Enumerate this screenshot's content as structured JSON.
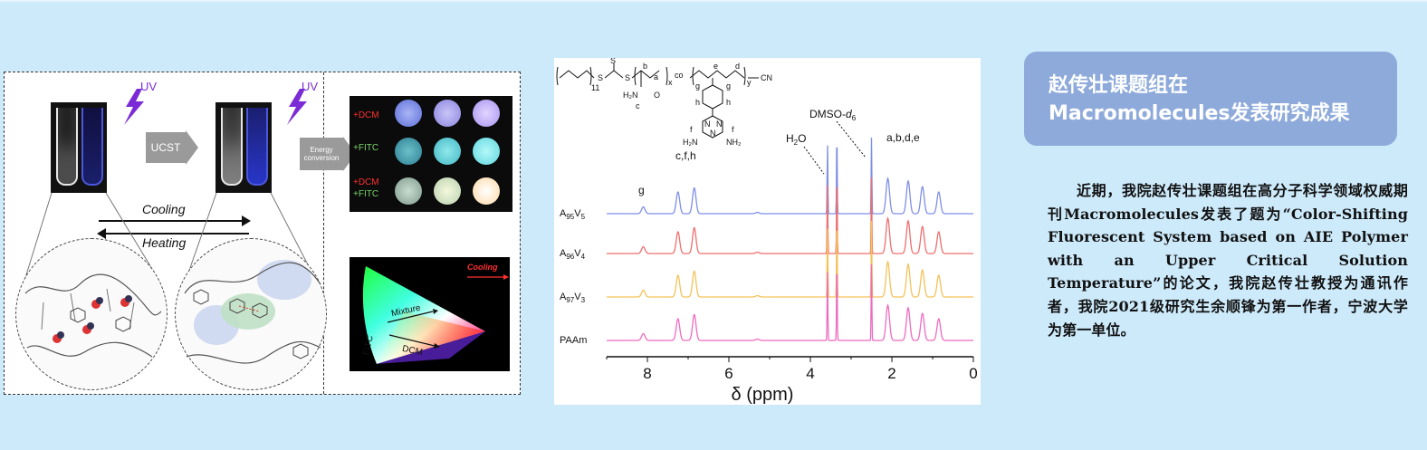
{
  "colors": {
    "background": "#cdeafb",
    "title_box": "#8eaadb",
    "title_text": "#ffffff"
  },
  "title": {
    "line1": "赵传壮课题组在",
    "line2": "Macromolecules发表研究成果"
  },
  "body": {
    "paragraph": "近期，我院赵传壮课题组在高分子科学领域权威期刊Macromolecules发表了题为“Color-Shifting Fluorescent System based on AIE Polymer with an Upper Critical Solution Temperature”的论文，我院赵传壮教授为通讯作者，我院2021级研究生余顺锋为第一作者，宁波大学为第一单位。"
  },
  "scheme": {
    "uv1": "UV",
    "uv2": "UV",
    "ucst": "UCST",
    "energy": "Energy conversion",
    "cooling": "Cooling",
    "heating": "Heating",
    "row1": "+DCM",
    "row2": "+FITC",
    "row3a": "+DCM",
    "row3b": "+FITC",
    "cie_cooling": "Cooling",
    "cie_mixture": "Mixture",
    "cie_fitc": "FITC",
    "cie_dcm": "DCM"
  },
  "chart_data": {
    "type": "line",
    "title": "",
    "xlabel": "δ (ppm)",
    "ylabel": "",
    "xlim": [
      9,
      0
    ],
    "xticks": [
      8,
      6,
      4,
      2,
      0
    ],
    "series": [
      {
        "name": "A95V5",
        "label_main": "A",
        "sub1": "95",
        "label_mid": "V",
        "sub2": "5",
        "color": "#7f8fe6"
      },
      {
        "name": "A96V4",
        "label_main": "A",
        "sub1": "96",
        "label_mid": "V",
        "sub2": "4",
        "color": "#ee6f6f"
      },
      {
        "name": "A97V3",
        "label_main": "A",
        "sub1": "97",
        "label_mid": "V",
        "sub2": "3",
        "color": "#f3c25a"
      },
      {
        "name": "PAAm",
        "label_main": "PAAm",
        "sub1": "",
        "label_mid": "",
        "sub2": "",
        "color": "#ee6bbf"
      }
    ],
    "peaks": [
      {
        "x": 8.1,
        "h": 0.25
      },
      {
        "x": 7.25,
        "h": 0.8
      },
      {
        "x": 6.85,
        "h": 0.95
      },
      {
        "x": 5.3,
        "h": 0.05
      },
      {
        "x": 3.58,
        "h": 2.6
      },
      {
        "x": 3.35,
        "h": 3.0
      },
      {
        "x": 2.5,
        "h": 2.8
      },
      {
        "x": 2.1,
        "h": 1.3
      },
      {
        "x": 1.6,
        "h": 1.2
      },
      {
        "x": 1.25,
        "h": 1.0
      },
      {
        "x": 0.85,
        "h": 0.8
      }
    ],
    "annotations": {
      "g": "g",
      "cfh": "c,f,h",
      "h2o": "H",
      "h2o_sub": "2",
      "h2o_end": "O",
      "dmso": "DMSO-",
      "dmso_d": "d",
      "dmso_sub": "6",
      "abde": "a,b,d,e"
    },
    "structure": {
      "n11": "11",
      "x": "x",
      "y": "y",
      "co": "co",
      "cn": "CN",
      "s1": "S",
      "s2": "S",
      "s3": "S",
      "b": "b",
      "a": "a",
      "e": "e",
      "d": "d",
      "c": "c",
      "h2n": "H₂N",
      "o": "O",
      "g1": "g",
      "h1": "h",
      "g2": "g",
      "h2": "h",
      "f1": "f",
      "f2": "f",
      "nh2l": "H₂N",
      "nh2r": "NH₂",
      "n1": "N",
      "n2": "N",
      "n3": "N"
    }
  }
}
